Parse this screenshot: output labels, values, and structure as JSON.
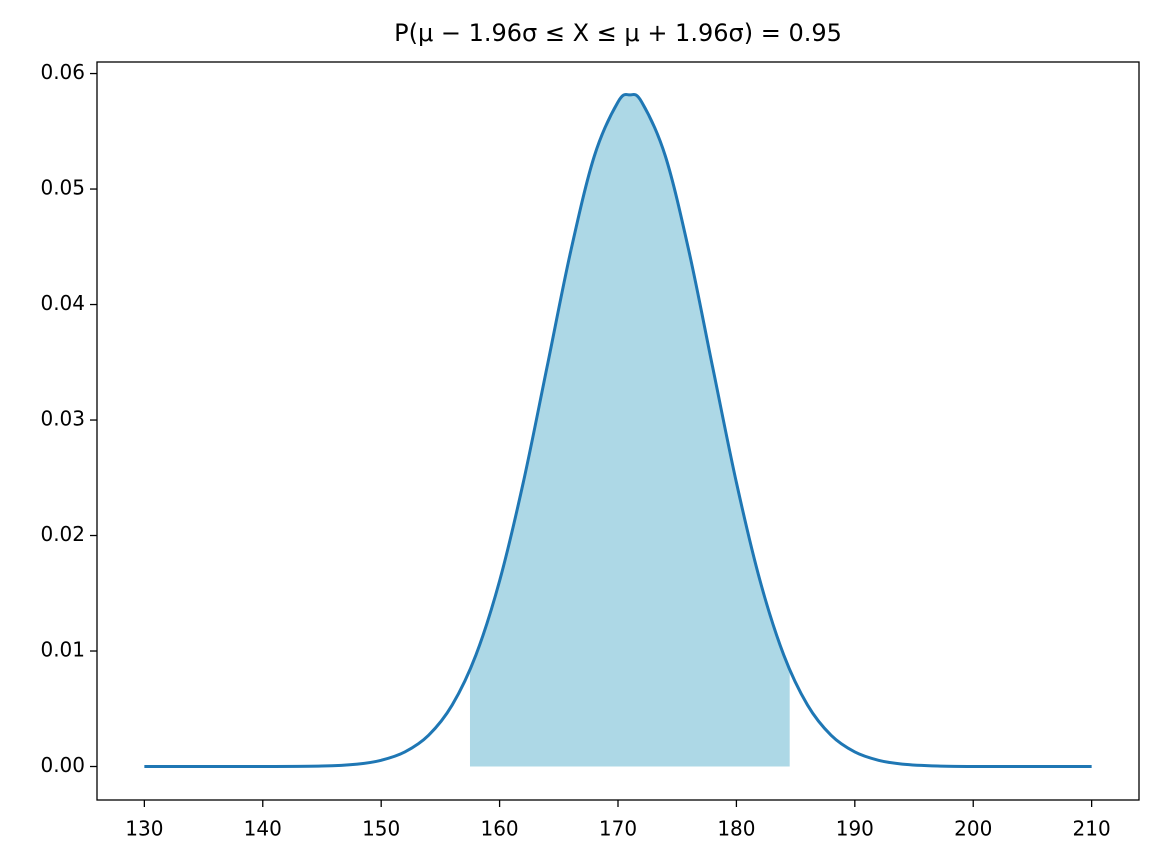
{
  "chart_data": {
    "type": "line",
    "title": "P(μ − 1.96σ ≤ X ≤ μ + 1.96σ) = 0.95",
    "line": {
      "color": "#1f77b4",
      "x": [
        130,
        135,
        140,
        145,
        148,
        150,
        152,
        154,
        156,
        158,
        160,
        162,
        164,
        166,
        168,
        170,
        171,
        172,
        174,
        176,
        178,
        180,
        182,
        184,
        186,
        188,
        190,
        192,
        194,
        197,
        200,
        205,
        210
      ],
      "values": [
        0,
        0,
        0,
        4e-05,
        0.00021,
        0.00054,
        0.00126,
        0.0027,
        0.00533,
        0.00965,
        0.01607,
        0.02459,
        0.03455,
        0.04458,
        0.05285,
        0.05754,
        0.05815,
        0.05754,
        0.05285,
        0.04458,
        0.03455,
        0.02459,
        0.01607,
        0.00965,
        0.00533,
        0.0027,
        0.00126,
        0.00054,
        0.00021,
        4e-05,
        0,
        0,
        0
      ]
    },
    "area": {
      "color": "#add8e6",
      "x": [
        157.5,
        158,
        160,
        162,
        164,
        166,
        168,
        170,
        171,
        172,
        174,
        176,
        178,
        180,
        182,
        184,
        184.5
      ],
      "values": [
        0.00839,
        0.00965,
        0.01607,
        0.02459,
        0.03455,
        0.04458,
        0.05285,
        0.05754,
        0.05815,
        0.05754,
        0.05285,
        0.04458,
        0.03455,
        0.02459,
        0.01607,
        0.00965,
        0.00839
      ]
    },
    "xlim": [
      126,
      214
    ],
    "ylim": [
      -0.0029,
      0.061
    ],
    "xticks": [
      130,
      140,
      150,
      160,
      170,
      180,
      190,
      200,
      210
    ],
    "yticks": [
      {
        "value": 0,
        "label": "0.00"
      },
      {
        "value": 0.01,
        "label": "0.01"
      },
      {
        "value": 0.02,
        "label": "0.02"
      },
      {
        "value": 0.03,
        "label": "0.03"
      },
      {
        "value": 0.04,
        "label": "0.04"
      },
      {
        "value": 0.05,
        "label": "0.05"
      },
      {
        "value": 0.06,
        "label": "0.06"
      }
    ]
  }
}
